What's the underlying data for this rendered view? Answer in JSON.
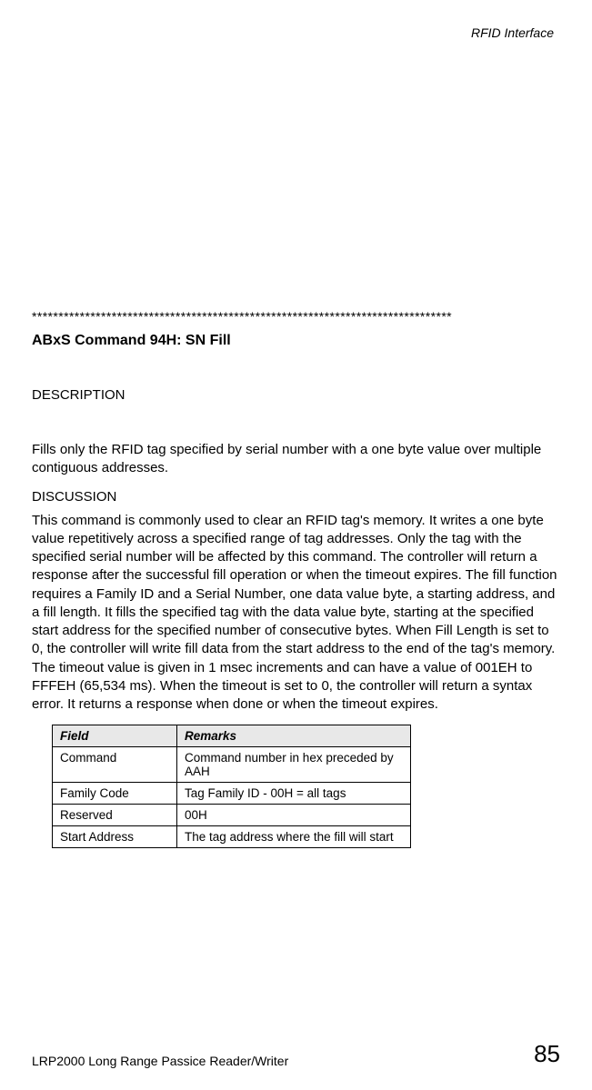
{
  "header": {
    "right": "RFID Interface"
  },
  "separator": "*******************************************************************************",
  "section_title": "ABxS Command 94H: SN Fill",
  "description_heading": "DESCRIPTION",
  "description_body": "Fills only the RFID tag specified by serial number with a one byte value over multiple contiguous addresses.",
  "discussion_heading": "DISCUSSION",
  "discussion_body": "This command is commonly used to clear an RFID tag's memory. It writes a one byte value repetitively across a specified range of tag addresses. Only the tag with the specified serial number will be affected by this command.  The controller will return a response after the successful fill operation or when the timeout expires.  The fill function requires a Family ID and a Serial Number, one data value byte, a starting address, and a fill length. It fills the specified tag with the data value byte, starting at the specified start address for the specified number of consecutive bytes. When Fill Length is set to 0, the controller will write fill data from the start address to the end of the tag's memory.  The timeout value is given in 1 msec increments and can have a value of 001EH to FFFEH (65,534 ms). When the timeout is set to 0, the controller will return a syntax error. It returns a response when done or when the timeout expires.",
  "table": {
    "headers": {
      "field": "Field",
      "remarks": "Remarks"
    },
    "rows": [
      {
        "field": "Command",
        "remarks": "Command number in hex preceded by AAH"
      },
      {
        "field": "Family Code",
        "remarks": "Tag Family ID - 00H = all tags"
      },
      {
        "field": "Reserved",
        "remarks": "00H"
      },
      {
        "field": "Start Address",
        "remarks": "The tag address where the fill will start"
      }
    ]
  },
  "footer": {
    "left": "LRP2000 Long Range Passice Reader/Writer",
    "page_number": "85"
  }
}
